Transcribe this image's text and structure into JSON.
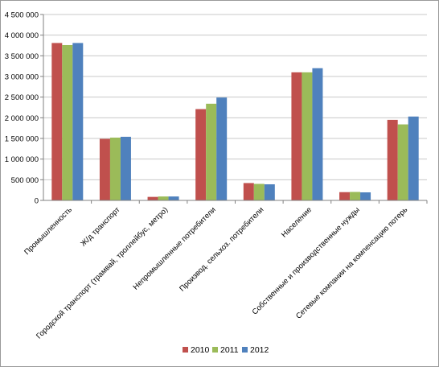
{
  "chart_data": {
    "type": "bar",
    "categories": [
      "Промышленность",
      "Ж/д транспорт",
      "Городской транспорт (трамвай, троллейбус, метро)",
      "Непромышленные потребители",
      "Производ. сельхоз. потребители",
      "Население",
      "Собственные и производственные нужды",
      "Сетевые компании на компенсацию потерь"
    ],
    "series": [
      {
        "name": "2010",
        "color": "#c0504d",
        "values": [
          3810000,
          1490000,
          85000,
          2210000,
          420000,
          3100000,
          200000,
          1950000
        ]
      },
      {
        "name": "2011",
        "color": "#9bbb59",
        "values": [
          3760000,
          1520000,
          95000,
          2340000,
          400000,
          3100000,
          205000,
          1840000
        ]
      },
      {
        "name": "2012",
        "color": "#4f81bd",
        "values": [
          3810000,
          1540000,
          95000,
          2490000,
          390000,
          3200000,
          195000,
          2030000
        ]
      }
    ],
    "y_ticks": [
      "0",
      "500 000",
      "1 000 000",
      "1 500 000",
      "2 000 000",
      "2 500 000",
      "3 000 000",
      "3 500 000",
      "4 000 000",
      "4 500 000"
    ],
    "ylim": [
      0,
      4500000
    ],
    "grid": true,
    "legend_position": "bottom",
    "title": "",
    "xlabel": "",
    "ylabel": ""
  }
}
